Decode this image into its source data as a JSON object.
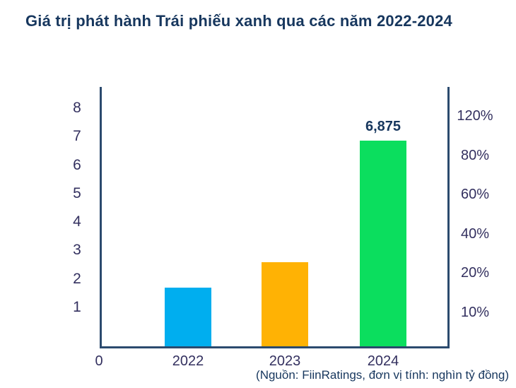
{
  "title": "Giá trị phát hành Trái phiếu xanh qua các năm 2022-2024",
  "source_note": "(Nguồn: FiinRatings, đơn vị tính: nghìn tỷ đồng)",
  "colors": {
    "title_text": "#17375E",
    "tick_text": "#33305F",
    "axis_line": "#2B4A6E",
    "bar_2022": "#00AEEF",
    "bar_2023": "#FFB204",
    "bar_2024": "#0BDE5E"
  },
  "chart_data": {
    "type": "bar",
    "title": "Giá trị phát hành Trái phiếu xanh qua các năm 2022-2024",
    "categories": [
      "2022",
      "2023",
      "2024"
    ],
    "values": [
      1.7,
      2.6,
      6.875
    ],
    "data_labels": [
      "",
      "",
      "6,875"
    ],
    "bar_colors": [
      "#00AEEF",
      "#FFB204",
      "#0BDE5E"
    ],
    "unit": "nghìn tỷ đồng",
    "source": "FiinRatings",
    "left_axis_ticks": [
      "8",
      "7",
      "6",
      "5",
      "4",
      "3",
      "2",
      "1"
    ],
    "origin_label": "0",
    "right_axis_ticks": [
      "120%",
      "80%",
      "60%",
      "40%",
      "20%",
      "10%"
    ],
    "ylim": [
      0,
      8.5
    ],
    "grid": false,
    "legend_position": "none"
  }
}
